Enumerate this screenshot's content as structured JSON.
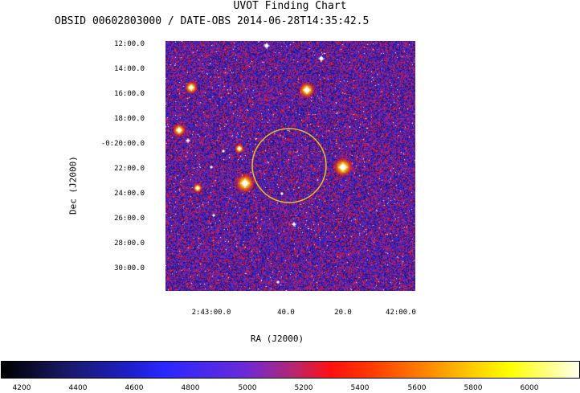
{
  "title": "UVOT Finding Chart",
  "subtitle": "OBSID 00602803000 / DATE-OBS 2014-06-28T14:35:42.5",
  "axes": {
    "xlabel": "RA (J2000)",
    "ylabel": "Dec (J2000)",
    "dec_ticks": [
      "12:00.0",
      "14:00.0",
      "16:00.0",
      "18:00.0",
      "-0:20:00.0",
      "22:00.0",
      "24:00.0",
      "26:00.0",
      "28:00.0",
      "30:00.0"
    ],
    "ra_ticks": [
      "2:43:00.0",
      "40.0",
      "20.0",
      "42:00.0"
    ]
  },
  "colorbar": {
    "ticks": [
      "4200",
      "4400",
      "4600",
      "4800",
      "5000",
      "5200",
      "5400",
      "5600",
      "5800",
      "6000"
    ],
    "colors": {
      "low": "#000000",
      "mid_blue": "#2828ff",
      "mid_red": "#ff1010",
      "high": "#ffff00",
      "top": "#fffff0"
    }
  },
  "colors": {
    "circle": "#e8c020",
    "background": "#3a1a9e"
  }
}
